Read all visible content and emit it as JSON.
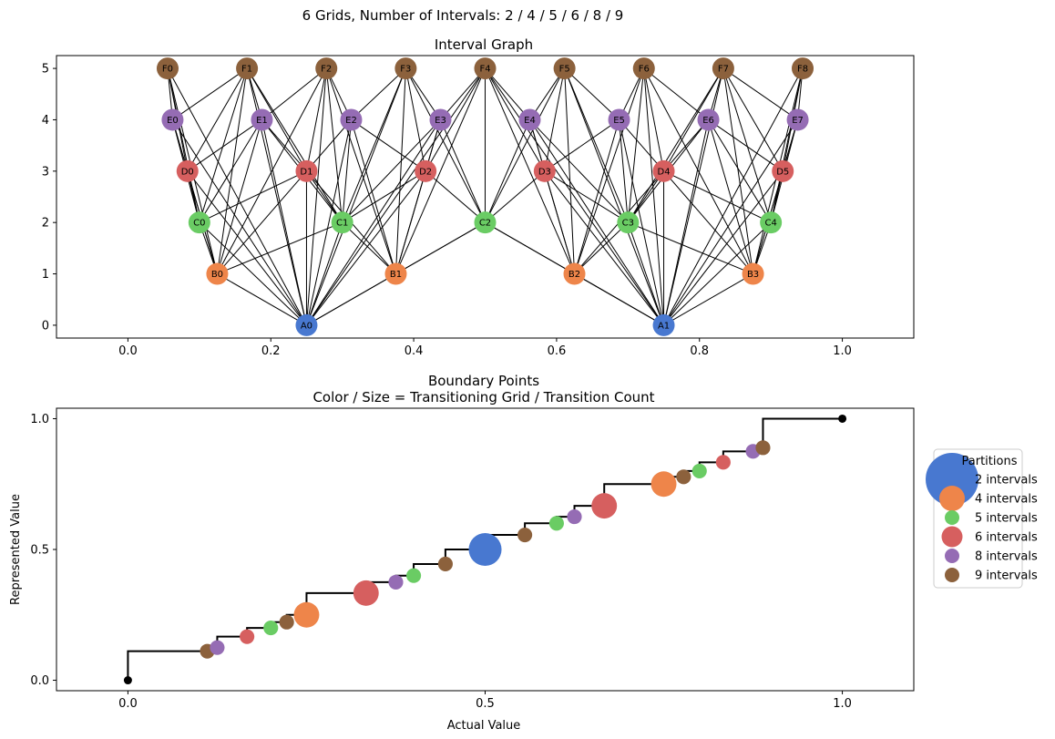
{
  "suptitle": "6 Grids, Number of Intervals: 2 / 4 / 5 / 6 / 8 / 9",
  "colors": {
    "A": "#4878d0",
    "B": "#ee854a",
    "C": "#6acc64",
    "D": "#d65f5f",
    "E": "#956cb4",
    "F": "#8c613c",
    "endpoint": "#000000",
    "edge": "#000000"
  },
  "chart_data": [
    {
      "type": "network",
      "title": "Interval Graph",
      "xlim": [
        -0.1,
        1.1
      ],
      "ylim": [
        -0.25,
        5.25
      ],
      "xticks": [
        0.0,
        0.2,
        0.4,
        0.6,
        0.8,
        1.0
      ],
      "xtick_labels": [
        "0.0",
        "0.2",
        "0.4",
        "0.6",
        "0.8",
        "1.0"
      ],
      "yticks": [
        0,
        1,
        2,
        3,
        4,
        5
      ],
      "ytick_labels": [
        "0",
        "1",
        "2",
        "3",
        "4",
        "5"
      ],
      "levels": [
        {
          "grid": "A",
          "intervals": 2,
          "y": 0,
          "labels": [
            "A0",
            "A1"
          ]
        },
        {
          "grid": "B",
          "intervals": 4,
          "y": 1,
          "labels": [
            "B0",
            "B1",
            "B2",
            "B3"
          ]
        },
        {
          "grid": "C",
          "intervals": 5,
          "y": 2,
          "labels": [
            "C0",
            "C1",
            "C2",
            "C3",
            "C4"
          ]
        },
        {
          "grid": "D",
          "intervals": 6,
          "y": 3,
          "labels": [
            "D0",
            "D1",
            "D2",
            "D3",
            "D4",
            "D5"
          ]
        },
        {
          "grid": "E",
          "intervals": 8,
          "y": 4,
          "labels": [
            "E0",
            "E1",
            "E2",
            "E3",
            "E4",
            "E5",
            "E6",
            "E7"
          ]
        },
        {
          "grid": "F",
          "intervals": 9,
          "y": 5,
          "labels": [
            "F0",
            "F1",
            "F2",
            "F3",
            "F4",
            "F5",
            "F6",
            "F7",
            "F8"
          ]
        }
      ],
      "edges": "overlapping intervals between grids"
    },
    {
      "type": "scatter",
      "title": "Boundary Points",
      "subtitle": "Color / Size = Transitioning Grid / Transition Count",
      "xlabel": "Actual Value",
      "ylabel": "Represented Value",
      "xlim": [
        -0.1,
        1.1
      ],
      "ylim": [
        -0.04,
        1.04
      ],
      "xticks": [
        0.0,
        0.5,
        1.0
      ],
      "xtick_labels": [
        "0.0",
        "0.5",
        "1.0"
      ],
      "yticks": [
        0.0,
        0.5,
        1.0
      ],
      "ytick_labels": [
        "0.0",
        "0.5",
        "1.0"
      ],
      "legend_title": "Partitions",
      "legend_position": "outside-right",
      "series": [
        {
          "name": "2 intervals",
          "grid": "A",
          "count": 5,
          "points": [
            [
              0.5,
              0.5
            ]
          ]
        },
        {
          "name": "4 intervals",
          "grid": "B",
          "count": 3,
          "points": [
            [
              0.25,
              0.25
            ],
            [
              0.75,
              0.75
            ]
          ]
        },
        {
          "name": "5 intervals",
          "grid": "C",
          "count": 1,
          "points": [
            [
              0.2,
              0.2
            ],
            [
              0.4,
              0.4
            ],
            [
              0.6,
              0.6
            ],
            [
              0.8,
              0.8
            ]
          ]
        },
        {
          "name": "6 intervals",
          "grid": "D",
          "count": 2,
          "points": [
            [
              0.1667,
              0.1667
            ],
            [
              0.3333,
              0.3333
            ],
            [
              0.6667,
              0.6667
            ],
            [
              0.8333,
              0.8333
            ]
          ],
          "sizes": [
            1,
            3,
            3,
            1
          ]
        },
        {
          "name": "8 intervals",
          "grid": "E",
          "count": 1,
          "points": [
            [
              0.125,
              0.125
            ],
            [
              0.375,
              0.375
            ],
            [
              0.625,
              0.625
            ],
            [
              0.875,
              0.875
            ]
          ]
        },
        {
          "name": "9 intervals",
          "grid": "F",
          "count": 1,
          "points": [
            [
              0.1111,
              0.1111
            ],
            [
              0.2222,
              0.2222
            ],
            [
              0.4444,
              0.4444
            ],
            [
              0.5556,
              0.5556
            ],
            [
              0.7778,
              0.7778
            ],
            [
              0.8889,
              0.8889
            ]
          ]
        }
      ],
      "endpoints": [
        [
          0.0,
          0.0
        ],
        [
          1.0,
          1.0
        ]
      ]
    }
  ]
}
